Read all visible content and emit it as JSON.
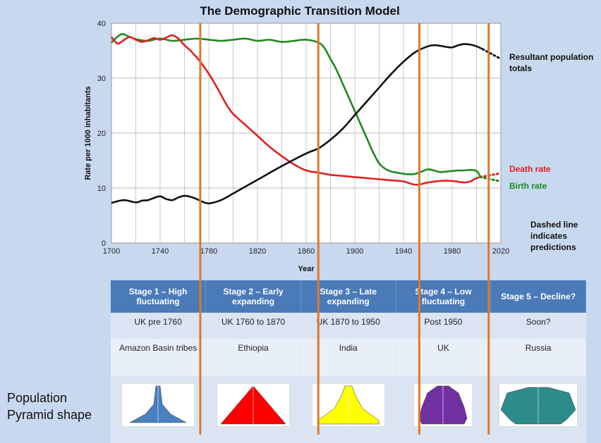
{
  "chart_data": {
    "type": "line",
    "title": "The Demographic Transition Model",
    "xlabel": "Year",
    "ylabel": "Rate per 1000 inhabitants",
    "xlim": [
      1700,
      2020
    ],
    "ylim": [
      0,
      40
    ],
    "x_ticks": [
      "1700",
      "1740",
      "1780",
      "1820",
      "1860",
      "1900",
      "1940",
      "1980",
      "2020"
    ],
    "y_ticks": [
      "0",
      "10",
      "20",
      "30",
      "40"
    ],
    "grid": true,
    "series": [
      {
        "name": "Birth rate",
        "color": "#1f8a1f",
        "x": [
          1700,
          1708,
          1715,
          1722,
          1730,
          1740,
          1750,
          1760,
          1770,
          1780,
          1790,
          1800,
          1810,
          1820,
          1830,
          1840,
          1850,
          1860,
          1870,
          1875,
          1880,
          1885,
          1890,
          1895,
          1900,
          1905,
          1910,
          1915,
          1920,
          1925,
          1930,
          1935,
          1940,
          1945,
          1950,
          1955,
          1960,
          1965,
          1970,
          1975,
          1980,
          1985,
          1990,
          1995,
          2000,
          2003
        ],
        "y": [
          36.5,
          38,
          37.5,
          37,
          36.8,
          37.2,
          36.8,
          37,
          37.2,
          37,
          36.8,
          37,
          37.2,
          36.8,
          37,
          36.6,
          36.8,
          37,
          36.5,
          35.5,
          33.5,
          31.5,
          29,
          26.5,
          24,
          21.5,
          19,
          16.5,
          14.5,
          13.5,
          13,
          12.8,
          12.6,
          12.5,
          12.6,
          13,
          13.4,
          13.2,
          12.9,
          13,
          13.1,
          13.2,
          13.2,
          13.3,
          13.1,
          12.2
        ]
      },
      {
        "name": "Death rate",
        "color": "#e02020",
        "x": [
          1700,
          1705,
          1710,
          1715,
          1720,
          1725,
          1730,
          1735,
          1740,
          1745,
          1750,
          1755,
          1760,
          1765,
          1770,
          1775,
          1780,
          1785,
          1790,
          1795,
          1800,
          1810,
          1820,
          1830,
          1840,
          1850,
          1860,
          1870,
          1880,
          1890,
          1900,
          1910,
          1920,
          1930,
          1940,
          1950,
          1960,
          1970,
          1980,
          1990,
          1995,
          2000,
          2005
        ],
        "y": [
          37.5,
          36.3,
          36.9,
          37.5,
          37.0,
          36.6,
          36.9,
          37.3,
          37.0,
          37.4,
          37.8,
          37.2,
          36.0,
          35.0,
          33.8,
          32.4,
          30.8,
          29.0,
          27.0,
          25.0,
          23.5,
          21.5,
          19.5,
          17.5,
          15.8,
          14.3,
          13.2,
          12.8,
          12.4,
          12.2,
          12.0,
          11.8,
          11.6,
          11.4,
          11.2,
          10.6,
          11.0,
          11.3,
          11.3,
          11.0,
          11.2,
          11.8,
          12.1
        ]
      },
      {
        "name": "Resultant population totals",
        "color": "#111111",
        "x": [
          1700,
          1710,
          1720,
          1725,
          1730,
          1735,
          1740,
          1745,
          1750,
          1755,
          1760,
          1765,
          1770,
          1775,
          1780,
          1790,
          1800,
          1820,
          1840,
          1860,
          1870,
          1880,
          1890,
          1900,
          1910,
          1920,
          1930,
          1940,
          1950,
          1960,
          1965,
          1970,
          1975,
          1980,
          1985,
          1990,
          1995,
          2000,
          2005
        ],
        "y": [
          7.3,
          7.8,
          7.4,
          7.7,
          7.8,
          8.2,
          8.5,
          8.0,
          7.8,
          8.3,
          8.6,
          8.4,
          8.0,
          7.5,
          7.2,
          7.8,
          9.0,
          11.5,
          14.0,
          16.3,
          17.2,
          18.8,
          20.8,
          23.3,
          25.8,
          28.3,
          30.8,
          33.0,
          34.8,
          35.8,
          36.0,
          35.9,
          35.7,
          35.6,
          36.0,
          36.2,
          36.1,
          35.8,
          35.3
        ]
      }
    ],
    "predictions": [
      {
        "name": "Resultant population totals",
        "color": "#111111",
        "x": [
          2005,
          2020
        ],
        "y": [
          35.3,
          33.5
        ]
      },
      {
        "name": "Death rate",
        "color": "#e02020",
        "x": [
          2003,
          2020
        ],
        "y": [
          12.0,
          12.7
        ]
      },
      {
        "name": "Birth rate",
        "color": "#1f8a1f",
        "x": [
          2003,
          2020
        ],
        "y": [
          12.0,
          11.2
        ]
      }
    ],
    "stage_boundaries": [
      1773,
      1870,
      1953,
      2010
    ],
    "stage_line_color": "#e0782a",
    "annotations": {
      "population": [
        "Resultant population",
        "totals"
      ],
      "death": "Death rate",
      "birth": "Birth rate",
      "note": [
        "Dashed line",
        "indicates",
        "predictions"
      ]
    }
  },
  "stages": [
    {
      "name": "Stage 1 – High fluctuating",
      "period": "UK pre 1760",
      "example": "Amazon Basin tribes",
      "pyramid_color": "#4a7fc1",
      "pyramid_shape": "concave"
    },
    {
      "name": "Stage 2 – Early expanding",
      "period": "UK 1760 to 1870",
      "example": "Ethiopia",
      "pyramid_color": "#ff0000",
      "pyramid_shape": "triangle"
    },
    {
      "name": "Stage 3 – Late expanding",
      "period": "UK  1870 to 1950",
      "example": "India",
      "pyramid_color": "#ffff00",
      "pyramid_shape": "bell"
    },
    {
      "name": "Stage 4 – Low fluctuating",
      "period": "Post 1950",
      "example": "UK",
      "pyramid_color": "#7030a0",
      "pyramid_shape": "column"
    },
    {
      "name": "Stage 5 – Decline?",
      "period": "Soon?",
      "example": "Russia",
      "pyramid_color": "#2e8b8b",
      "pyramid_shape": "inverted"
    }
  ],
  "pyramid_label": [
    "Population",
    "Pyramid shape"
  ]
}
